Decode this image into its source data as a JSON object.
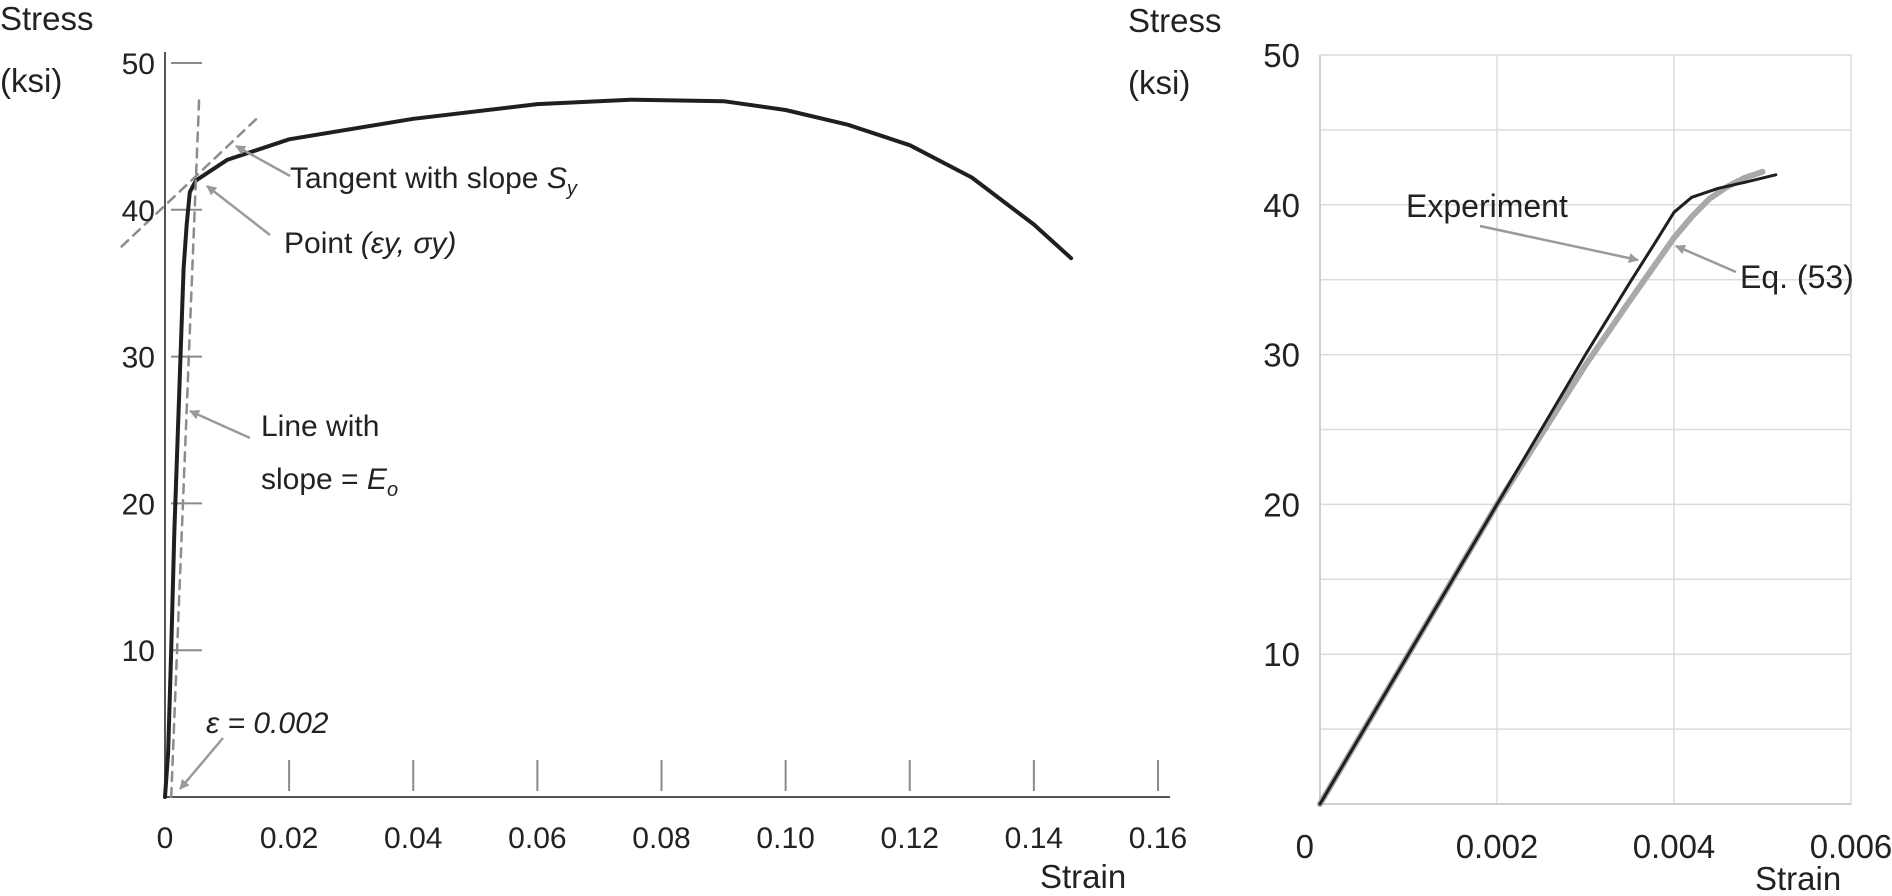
{
  "chart_data": [
    {
      "type": "line",
      "ylabel_line1": "Stress",
      "ylabel_line2": "(ksi)",
      "xlabel": "Strain",
      "xlim": [
        0,
        0.16
      ],
      "ylim": [
        0,
        50
      ],
      "x_ticks": [
        0,
        0.02,
        0.04,
        0.06,
        0.08,
        0.1,
        0.12,
        0.14,
        0.16
      ],
      "x_tick_labels": [
        "0",
        "0.02",
        "0.04",
        "0.06",
        "0.08",
        "0.10",
        "0.12",
        "0.14",
        "0.16"
      ],
      "y_ticks": [
        10,
        20,
        30,
        40,
        50
      ],
      "y_tick_labels": [
        "10",
        "20",
        "30",
        "40",
        "50"
      ],
      "grid": false,
      "series": [
        {
          "x": [
            0,
            0.0005,
            0.001,
            0.0015,
            0.0025,
            0.003,
            0.0035,
            0.004,
            0.005,
            0.01,
            0.02,
            0.04,
            0.06,
            0.075,
            0.09,
            0.1,
            0.11,
            0.12,
            0.13,
            0.14,
            0.146
          ],
          "y": [
            0,
            3,
            10,
            18,
            30,
            36,
            39,
            41.2,
            42,
            43.4,
            44.8,
            46.2,
            47.2,
            47.5,
            47.4,
            46.8,
            45.8,
            44.4,
            42.2,
            39,
            36.7
          ]
        },
        {
          "x": [
            0.001,
            0.0055
          ],
          "y": [
            0,
            47.5
          ],
          "style": "dashed"
        },
        {
          "x": [
            -0.007,
            0.015
          ],
          "y": [
            37.5,
            46.3
          ],
          "style": "dashed"
        }
      ],
      "annotations": [
        {
          "text": "Tangent with slope ",
          "italic_part": "S",
          "subscript": "y",
          "x": 0.01,
          "y": 44.3
        },
        {
          "text": "Point ",
          "italic_part": "(εy, σy)",
          "x": 0.005,
          "y": 41.9
        },
        {
          "text": "Line with",
          "text2": "slope = ",
          "italic_part": "E",
          "subscript": "o",
          "x": 0.0035,
          "y": 26.5
        },
        {
          "text": "ε = 0.002",
          "italic": true,
          "x": 0.002,
          "y": 0
        }
      ]
    },
    {
      "type": "line",
      "ylabel_line1": "Stress",
      "ylabel_line2": "(ksi)",
      "xlabel": "Strain",
      "xlim": [
        0,
        0.006
      ],
      "ylim": [
        0,
        50
      ],
      "x_ticks": [
        0,
        0.002,
        0.004,
        0.006
      ],
      "x_tick_labels": [
        "0",
        "0.002",
        "0.004",
        "0.006"
      ],
      "y_ticks": [
        10,
        20,
        30,
        40,
        50
      ],
      "y_tick_labels": [
        "10",
        "20",
        "30",
        "40",
        "50"
      ],
      "grid": true,
      "series": [
        {
          "name": "Experiment",
          "x": [
            0,
            0.001,
            0.002,
            0.003,
            0.0035,
            0.0038,
            0.004,
            0.0042,
            0.0045,
            0.0048,
            0.00515
          ],
          "y": [
            0,
            10,
            20,
            30,
            34.8,
            37.6,
            39.5,
            40.5,
            41.1,
            41.5,
            42.0
          ]
        },
        {
          "name": "Eq. (53)",
          "x": [
            0,
            0.001,
            0.002,
            0.003,
            0.0035,
            0.004,
            0.0042,
            0.0044,
            0.0046,
            0.0048,
            0.005
          ],
          "y": [
            0,
            10,
            20,
            29.3,
            33.6,
            37.8,
            39.2,
            40.4,
            41.2,
            41.8,
            42.2
          ]
        }
      ],
      "annotations": [
        {
          "text": "Experiment",
          "x": 0.0037,
          "y": 36.5
        },
        {
          "text": "Eq. (53)",
          "x": 0.0041,
          "y": 37.8
        }
      ]
    }
  ],
  "colors": {
    "curve": "#1f1f1f",
    "dashed": "#8c8c8c",
    "arrow": "#9a9a9a",
    "eq_curve": "#a9a9a9",
    "grid": "#dcdcdc",
    "axis": "#555555"
  }
}
